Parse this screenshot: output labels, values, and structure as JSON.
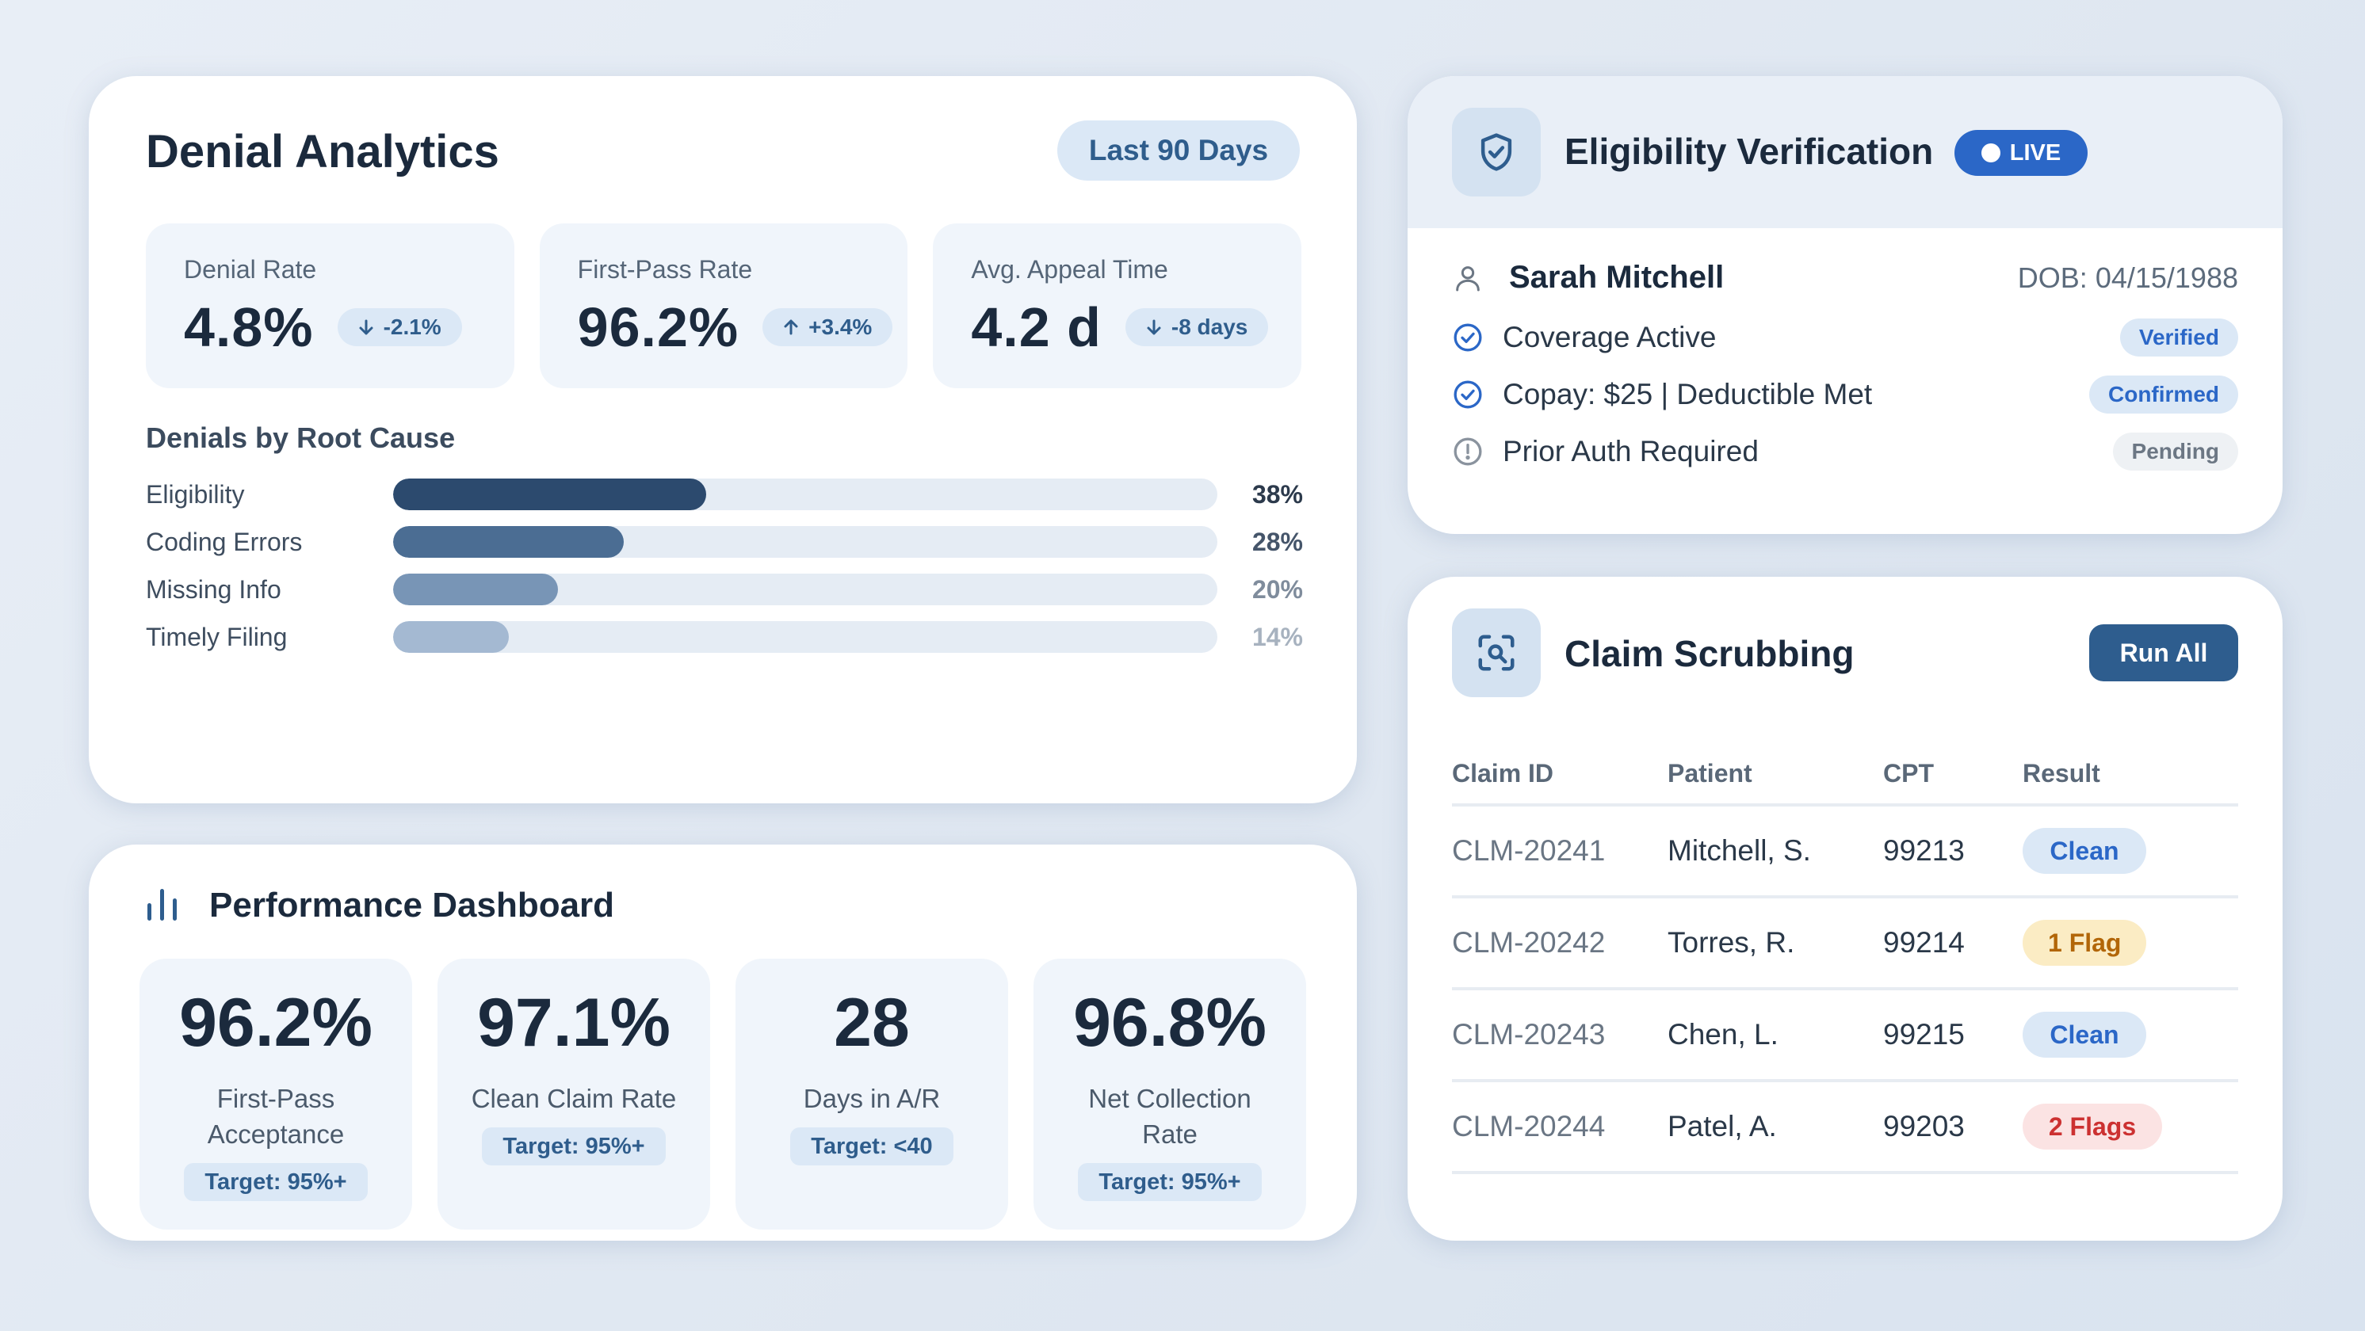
{
  "denial": {
    "title": "Denial Analytics",
    "range": "Last 90 Days",
    "kpis": [
      {
        "label": "Denial Rate",
        "value": "4.8%",
        "delta": "-2.1%",
        "direction": "down"
      },
      {
        "label": "First-Pass Rate",
        "value": "96.2%",
        "delta": "+3.4%",
        "direction": "up"
      },
      {
        "label": "Avg. Appeal Time",
        "value": "4.2 d",
        "delta": "-8 days",
        "direction": "down"
      }
    ],
    "root_cause_title": "Denials by Root Cause",
    "causes": [
      {
        "name": "Eligibility",
        "pct": "38%",
        "value": 38,
        "color": "#2c4a6e",
        "text_color": "#2c3a4c"
      },
      {
        "name": "Coding Errors",
        "pct": "28%",
        "value": 28,
        "color": "#4b6d93",
        "text_color": "#45556a"
      },
      {
        "name": "Missing Info",
        "pct": "20%",
        "value": 20,
        "color": "#7895b6",
        "text_color": "#7f8c9c"
      },
      {
        "name": "Timely Filing",
        "pct": "14%",
        "value": 14,
        "color": "#a4b9d2",
        "text_color": "#a7b2bf"
      }
    ]
  },
  "performance": {
    "title": "Performance Dashboard",
    "icon": "bar-chart-icon",
    "cards": [
      {
        "value": "96.2%",
        "caption": "First-Pass Acceptance",
        "target": "Target: 95%+"
      },
      {
        "value": "97.1%",
        "caption": "Clean Claim Rate",
        "target": "Target: 95%+"
      },
      {
        "value": "28",
        "caption": "Days in A/R",
        "target": "Target: <40"
      },
      {
        "value": "96.8%",
        "caption": "Net Collection Rate",
        "target": "Target: 95%+"
      }
    ]
  },
  "eligibility": {
    "title": "Eligibility Verification",
    "icon": "shield-check-icon",
    "live": "LIVE",
    "patient_name": "Sarah Mitchell",
    "dob": "DOB: 04/15/1988",
    "items": [
      {
        "text": "Coverage Active",
        "badge": "Verified",
        "status": "ok"
      },
      {
        "text": "Copay: $25 | Deductible Met",
        "badge": "Confirmed",
        "status": "ok"
      },
      {
        "text": "Prior Auth Required",
        "badge": "Pending",
        "status": "pending"
      }
    ]
  },
  "claims": {
    "title": "Claim Scrubbing",
    "icon": "scan-search-icon",
    "run_all": "Run All",
    "columns": [
      "Claim ID",
      "Patient",
      "CPT",
      "Result"
    ],
    "rows": [
      {
        "id": "CLM-20241",
        "patient": "Mitchell, S.",
        "cpt": "99213",
        "result": "Clean",
        "kind": "clean"
      },
      {
        "id": "CLM-20242",
        "patient": "Torres, R.",
        "cpt": "99214",
        "result": "1 Flag",
        "kind": "flag1"
      },
      {
        "id": "CLM-20243",
        "patient": "Chen, L.",
        "cpt": "99215",
        "result": "Clean",
        "kind": "clean"
      },
      {
        "id": "CLM-20244",
        "patient": "Patel, A.",
        "cpt": "99203",
        "result": "2 Flags",
        "kind": "flag2"
      }
    ]
  },
  "colors": {
    "accent": "#2b67c7",
    "navy_button": "#2e5d8e",
    "pill_bg": "#dbe8f6"
  }
}
